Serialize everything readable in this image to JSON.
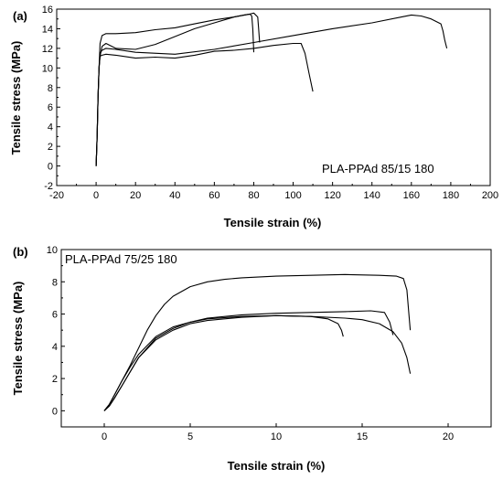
{
  "chart_data": [
    {
      "panel_label": "(a)",
      "type": "line",
      "annotation": "PLA-PPAd 85/15 180",
      "xlabel": "Tensile strain (%)",
      "ylabel": "Tensile stress (MPa)",
      "xlim": [
        -20,
        200
      ],
      "ylim": [
        -2,
        16
      ],
      "xticks": [
        -20,
        0,
        20,
        40,
        60,
        80,
        100,
        120,
        140,
        160,
        180,
        200
      ],
      "yticks": [
        -2,
        0,
        2,
        4,
        6,
        8,
        10,
        12,
        14,
        16
      ],
      "series": [
        {
          "x": [
            0,
            0.5,
            1,
            1.5,
            2,
            3,
            5,
            10,
            20,
            30,
            40,
            50,
            60,
            70,
            75,
            78,
            79,
            79.5,
            80
          ],
          "y": [
            0,
            3,
            7,
            10,
            12.5,
            13.3,
            13.5,
            13.5,
            13.6,
            13.9,
            14.1,
            14.5,
            14.9,
            15.2,
            15.4,
            15.5,
            15.3,
            14,
            11.6
          ]
        },
        {
          "x": [
            0,
            0.5,
            1,
            1.5,
            2,
            3,
            5,
            10,
            20,
            30,
            40,
            50,
            60,
            70,
            78,
            80,
            82,
            82.5,
            83
          ],
          "y": [
            0,
            3,
            7,
            10,
            11.2,
            12.2,
            12.5,
            12,
            11.9,
            12.4,
            13.2,
            14,
            14.6,
            15.2,
            15.5,
            15.6,
            15.2,
            14,
            12.6
          ]
        },
        {
          "x": [
            0,
            0.5,
            1,
            1.5,
            2,
            3,
            5,
            10,
            20,
            30,
            40,
            50,
            60,
            70,
            80,
            90,
            100,
            104,
            106,
            108,
            110
          ],
          "y": [
            0,
            3,
            7,
            10,
            11.2,
            11.3,
            11.4,
            11.3,
            11.0,
            11.1,
            11.0,
            11.3,
            11.7,
            11.8,
            12.0,
            12.3,
            12.5,
            12.5,
            11.5,
            9.5,
            7.6
          ]
        },
        {
          "x": [
            0,
            0.5,
            1,
            1.5,
            2,
            3,
            5,
            10,
            20,
            40,
            60,
            80,
            100,
            120,
            140,
            155,
            160,
            165,
            170,
            175,
            176,
            177,
            178
          ],
          "y": [
            0,
            3,
            7,
            10,
            11.5,
            11.8,
            12.0,
            11.9,
            11.6,
            11.4,
            11.9,
            12.6,
            13.3,
            14.0,
            14.6,
            15.2,
            15.4,
            15.3,
            15.0,
            14.5,
            13.8,
            12.8,
            12.0
          ]
        }
      ]
    },
    {
      "panel_label": "(b)",
      "type": "line",
      "annotation": "PLA-PPAd 75/25 180",
      "xlabel": "Tensile strain (%)",
      "ylabel": "Tensile stress (MPa)",
      "xlim": [
        -2.5,
        22.5
      ],
      "ylim": [
        -1,
        10
      ],
      "xticks": [
        0,
        5,
        10,
        15,
        20
      ],
      "yticks": [
        0,
        2,
        4,
        6,
        8,
        10
      ],
      "series": [
        {
          "x": [
            0,
            0.3,
            0.6,
            1,
            1.5,
            2,
            2.5,
            3,
            3.5,
            4,
            5,
            6,
            7,
            8,
            10,
            12,
            14,
            16,
            17,
            17.4,
            17.6,
            17.7,
            17.8
          ],
          "y": [
            0,
            0.4,
            1,
            1.8,
            2.8,
            3.9,
            5,
            5.9,
            6.6,
            7.1,
            7.7,
            8.0,
            8.15,
            8.25,
            8.35,
            8.4,
            8.45,
            8.4,
            8.35,
            8.2,
            7.5,
            6.2,
            5.0
          ]
        },
        {
          "x": [
            0,
            0.3,
            0.6,
            1,
            1.5,
            2,
            3,
            4,
            5,
            6,
            8,
            10,
            12,
            14,
            15.5,
            16.3,
            16.6,
            16.8
          ],
          "y": [
            0,
            0.3,
            0.8,
            1.5,
            2.4,
            3.3,
            4.5,
            5.1,
            5.5,
            5.75,
            5.95,
            6.05,
            6.1,
            6.15,
            6.2,
            6.1,
            5.5,
            4.7
          ]
        },
        {
          "x": [
            0,
            0.3,
            0.6,
            1,
            1.5,
            2,
            3,
            4,
            5,
            6,
            8,
            10,
            12,
            13,
            13.6,
            13.8,
            13.9
          ],
          "y": [
            0,
            0.3,
            0.8,
            1.5,
            2.4,
            3.3,
            4.4,
            5.0,
            5.4,
            5.6,
            5.8,
            5.9,
            5.85,
            5.7,
            5.4,
            5.0,
            4.6
          ]
        },
        {
          "x": [
            0,
            0.3,
            0.6,
            1,
            1.5,
            2,
            3,
            4,
            5,
            6,
            8,
            10,
            12,
            14,
            15,
            16,
            16.8,
            17.3,
            17.6,
            17.8
          ],
          "y": [
            0,
            0.4,
            1,
            1.8,
            2.7,
            3.5,
            4.6,
            5.2,
            5.5,
            5.7,
            5.85,
            5.9,
            5.85,
            5.75,
            5.65,
            5.4,
            4.9,
            4.2,
            3.3,
            2.3
          ]
        }
      ]
    }
  ]
}
